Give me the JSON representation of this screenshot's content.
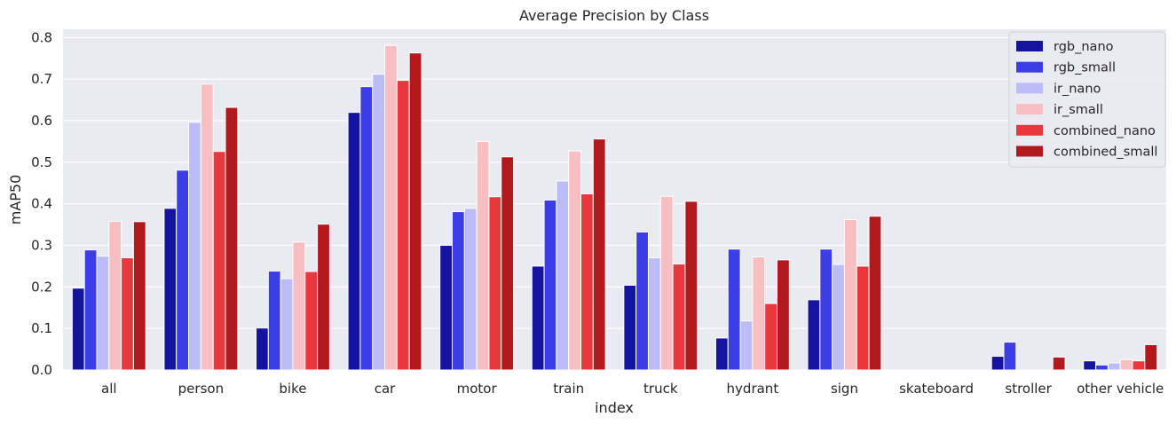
{
  "chart_data": {
    "type": "bar",
    "title": "Average Precision by Class",
    "xlabel": "index",
    "ylabel": "mAP50",
    "ylim": [
      0,
      0.82
    ],
    "yticks": [
      "0.0",
      "0.1",
      "0.2",
      "0.3",
      "0.4",
      "0.5",
      "0.6",
      "0.7",
      "0.8"
    ],
    "grid": true,
    "legend_position": "top-right",
    "categories": [
      "all",
      "person",
      "bike",
      "car",
      "motor",
      "train",
      "truck",
      "hydrant",
      "sign",
      "skateboard",
      "stroller",
      "other vehicle"
    ],
    "series": [
      {
        "name": "rgb_nano",
        "color": "#1414a0",
        "values": [
          0.197,
          0.389,
          0.101,
          0.62,
          0.3,
          0.25,
          0.204,
          0.077,
          0.169,
          0,
          0.033,
          0.022
        ]
      },
      {
        "name": "rgb_small",
        "color": "#3d3de6",
        "values": [
          0.289,
          0.481,
          0.238,
          0.682,
          0.381,
          0.409,
          0.332,
          0.291,
          0.291,
          0,
          0.067,
          0.012
        ]
      },
      {
        "name": "ir_nano",
        "color": "#bcbdf8",
        "values": [
          0.274,
          0.596,
          0.22,
          0.712,
          0.389,
          0.455,
          0.27,
          0.118,
          0.254,
          0,
          0,
          0.017
        ]
      },
      {
        "name": "ir_small",
        "color": "#f7bfc1",
        "values": [
          0.358,
          0.688,
          0.308,
          0.781,
          0.55,
          0.527,
          0.418,
          0.272,
          0.362,
          0,
          0,
          0.025
        ]
      },
      {
        "name": "combined_nano",
        "color": "#e8383e",
        "values": [
          0.27,
          0.526,
          0.237,
          0.697,
          0.417,
          0.424,
          0.255,
          0.16,
          0.25,
          0,
          0,
          0.022
        ]
      },
      {
        "name": "combined_small",
        "color": "#b2181c",
        "values": [
          0.357,
          0.632,
          0.351,
          0.763,
          0.513,
          0.556,
          0.406,
          0.265,
          0.37,
          0,
          0.031,
          0.061
        ]
      }
    ]
  }
}
